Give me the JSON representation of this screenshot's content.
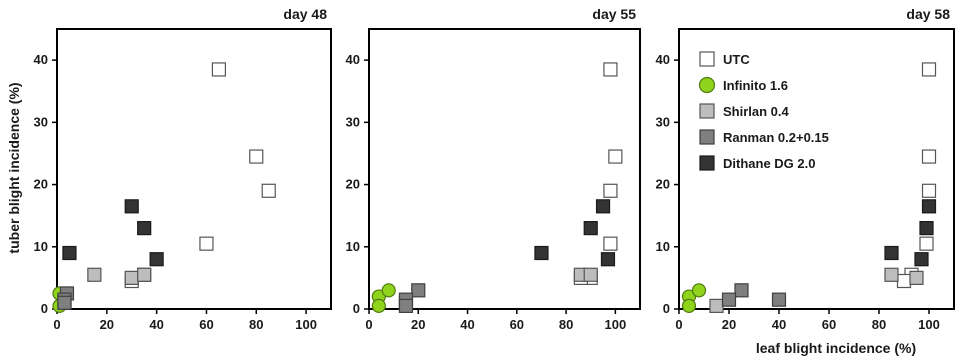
{
  "chart_data": [
    {
      "type": "scatter",
      "title": "day 48",
      "xlabel": "",
      "ylabel": "tuber blight incidence (%)",
      "xlim": [
        0,
        110
      ],
      "ylim": [
        0,
        45
      ],
      "xticks": [
        "0",
        "20",
        "40",
        "60",
        "80",
        "100"
      ],
      "yticks": [
        "0",
        "10",
        "20",
        "30",
        "40"
      ],
      "grid": false,
      "series": [
        {
          "name": "UTC",
          "points": [
            [
              65,
              38.5
            ],
            [
              80,
              24.5
            ],
            [
              85,
              19
            ],
            [
              60,
              10.5
            ],
            [
              35,
              5.5
            ],
            [
              30,
              4.5
            ]
          ]
        },
        {
          "name": "Infinito 1.6",
          "points": [
            [
              1,
              2.5
            ],
            [
              1,
              0.5
            ]
          ]
        },
        {
          "name": "Shirlan 0.4",
          "points": [
            [
              15,
              5.5
            ],
            [
              30,
              5
            ],
            [
              35,
              5.5
            ],
            [
              3,
              1
            ]
          ]
        },
        {
          "name": "Ranman 0.2+0.15",
          "points": [
            [
              4,
              2.5
            ],
            [
              3,
              1.5
            ],
            [
              3,
              1
            ]
          ]
        },
        {
          "name": "Dithane DG 2.0",
          "points": [
            [
              30,
              16.5
            ],
            [
              35,
              13
            ],
            [
              40,
              8
            ],
            [
              5,
              9
            ]
          ]
        }
      ]
    },
    {
      "type": "scatter",
      "title": "day 55",
      "xlabel": "",
      "ylabel": "",
      "xlim": [
        0,
        110
      ],
      "ylim": [
        0,
        45
      ],
      "xticks": [
        "0",
        "20",
        "40",
        "60",
        "80",
        "100"
      ],
      "yticks": [
        "0",
        "10",
        "20",
        "30",
        "40"
      ],
      "grid": false,
      "series": [
        {
          "name": "UTC",
          "points": [
            [
              98,
              38.5
            ],
            [
              100,
              24.5
            ],
            [
              98,
              19
            ],
            [
              98,
              10.5
            ],
            [
              90,
              5
            ],
            [
              86,
              5
            ]
          ]
        },
        {
          "name": "Infinito 1.6",
          "points": [
            [
              4,
              2
            ],
            [
              8,
              3
            ],
            [
              4,
              0.5
            ]
          ]
        },
        {
          "name": "Shirlan 0.4",
          "points": [
            [
              86,
              5.5
            ],
            [
              90,
              5.5
            ],
            [
              15,
              1
            ]
          ]
        },
        {
          "name": "Ranman 0.2+0.15",
          "points": [
            [
              20,
              3
            ],
            [
              15,
              1.5
            ],
            [
              15,
              0.5
            ]
          ]
        },
        {
          "name": "Dithane DG 2.0",
          "points": [
            [
              95,
              16.5
            ],
            [
              90,
              13
            ],
            [
              97,
              8
            ],
            [
              70,
              9
            ]
          ]
        }
      ]
    },
    {
      "type": "scatter",
      "title": "day 58",
      "xlabel": "leaf blight incidence (%)",
      "ylabel": "",
      "xlim": [
        0,
        110
      ],
      "ylim": [
        0,
        45
      ],
      "xticks": [
        "0",
        "20",
        "40",
        "60",
        "80",
        "100"
      ],
      "yticks": [
        "0",
        "10",
        "20",
        "30",
        "40"
      ],
      "grid": false,
      "legend_position": "top-left",
      "series": [
        {
          "name": "UTC",
          "points": [
            [
              100,
              38.5
            ],
            [
              100,
              24.5
            ],
            [
              100,
              19
            ],
            [
              99,
              10.5
            ],
            [
              93,
              5.5
            ],
            [
              90,
              4.5
            ]
          ]
        },
        {
          "name": "Infinito 1.6",
          "points": [
            [
              4,
              2
            ],
            [
              8,
              3
            ],
            [
              4,
              0.5
            ]
          ]
        },
        {
          "name": "Shirlan 0.4",
          "points": [
            [
              85,
              5.5
            ],
            [
              95,
              5
            ],
            [
              15,
              0.5
            ]
          ]
        },
        {
          "name": "Ranman 0.2+0.15",
          "points": [
            [
              25,
              3
            ],
            [
              20,
              1.5
            ],
            [
              40,
              1.5
            ]
          ]
        },
        {
          "name": "Dithane DG 2.0",
          "points": [
            [
              100,
              16.5
            ],
            [
              99,
              13
            ],
            [
              97,
              8
            ],
            [
              85,
              9
            ]
          ]
        }
      ]
    }
  ],
  "legend": {
    "items": [
      {
        "label": "UTC",
        "fill": "#ffffff",
        "stroke": "#555555",
        "shape": "square"
      },
      {
        "label": "Infinito 1.6",
        "fill": "#8fd31c",
        "stroke": "#4f7a10",
        "shape": "circle"
      },
      {
        "label": "Shirlan 0.4",
        "fill": "#bdbdbd",
        "stroke": "#555555",
        "shape": "square"
      },
      {
        "label": "Ranman 0.2+0.15",
        "fill": "#7f7f7f",
        "stroke": "#3f3f3f",
        "shape": "square"
      },
      {
        "label": "Dithane DG 2.0",
        "fill": "#333333",
        "stroke": "#1a1a1a",
        "shape": "square"
      }
    ]
  }
}
